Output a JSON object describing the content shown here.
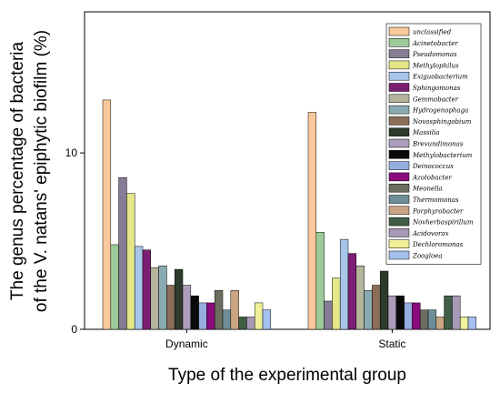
{
  "chart_data": {
    "type": "bar",
    "title": "",
    "xlabel": "Type of the experimental group",
    "ylabel_lines": [
      "The genus percentage of bacteria",
      "of the V. natans' epiphytic biofilm (%)"
    ],
    "ylim": [
      0,
      18
    ],
    "yticks": [
      0,
      10
    ],
    "categories": [
      "Dynamic",
      "Static"
    ],
    "legend_position": "top-right",
    "grid": false,
    "series": [
      {
        "name": "unclassified",
        "color": "#f9c89c",
        "values": [
          13.0,
          12.3
        ]
      },
      {
        "name": "Acinetobacter",
        "color": "#9ccb9a",
        "values": [
          4.8,
          5.5
        ]
      },
      {
        "name": "Pseudomonas",
        "color": "#857d95",
        "values": [
          8.6,
          1.6
        ]
      },
      {
        "name": "Methylophilus",
        "color": "#e5e58a",
        "values": [
          7.7,
          2.9
        ]
      },
      {
        "name": "Exiguobacterium",
        "color": "#a8c5ea",
        "values": [
          4.7,
          5.1
        ]
      },
      {
        "name": "Sphingomonas",
        "color": "#7a1f73",
        "values": [
          4.5,
          4.3
        ]
      },
      {
        "name": "Gemmobacter",
        "color": "#b4b49c",
        "values": [
          3.5,
          3.6
        ]
      },
      {
        "name": "Hydrogenophaga",
        "color": "#89aab0",
        "values": [
          3.6,
          2.2
        ]
      },
      {
        "name": "Novosphingobium",
        "color": "#8c6e58",
        "values": [
          2.5,
          2.5
        ]
      },
      {
        "name": "Massilia",
        "color": "#2e3b2c",
        "values": [
          3.4,
          3.3
        ]
      },
      {
        "name": "Brevundimonas",
        "color": "#ab9dbb",
        "values": [
          2.5,
          1.9
        ]
      },
      {
        "name": "Methylobacterium",
        "color": "#0a0a0a",
        "values": [
          1.9,
          1.9
        ]
      },
      {
        "name": "Deinococcus",
        "color": "#97ade0",
        "values": [
          1.5,
          1.5
        ]
      },
      {
        "name": "Azotobacter",
        "color": "#8a0b7c",
        "values": [
          1.5,
          1.5
        ]
      },
      {
        "name": "Meonella",
        "color": "#6e6e60",
        "values": [
          2.2,
          1.1
        ]
      },
      {
        "name": "Thermomonas",
        "color": "#6d8e96",
        "values": [
          1.1,
          1.1
        ]
      },
      {
        "name": "Porphyrobacter",
        "color": "#c9a583",
        "values": [
          2.2,
          0.7
        ]
      },
      {
        "name": "Novherbaspirillum",
        "color": "#3f5e45",
        "values": [
          0.7,
          1.9
        ]
      },
      {
        "name": "Acidovorax",
        "color": "#a899b7",
        "values": [
          0.7,
          1.9
        ]
      },
      {
        "name": "Dechloromonas",
        "color": "#f0f09a",
        "values": [
          1.5,
          0.7
        ]
      },
      {
        "name": "Zoogloea",
        "color": "#a5c0ef",
        "values": [
          1.1,
          0.7
        ]
      }
    ]
  }
}
